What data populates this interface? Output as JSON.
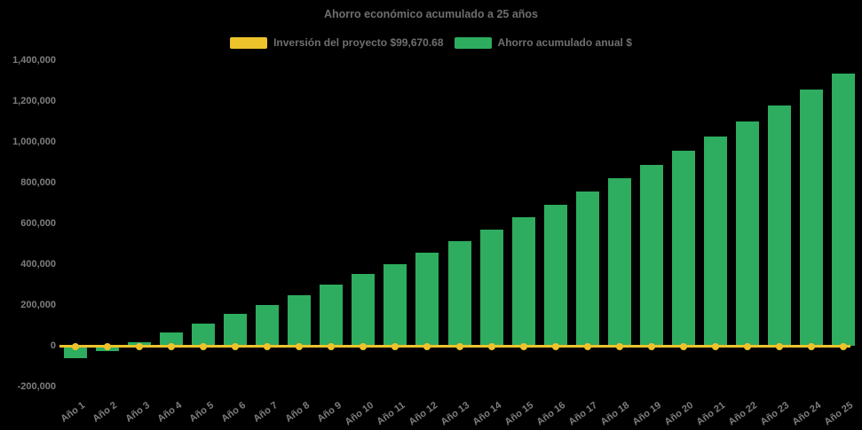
{
  "title": "Ahorro económico acumulado a 25 años",
  "legend": {
    "items": [
      {
        "label": "Inversión del proyecto $99,670.68",
        "color": "#edc32c",
        "series": "investment-line"
      },
      {
        "label": "Ahorro acumulado anual $",
        "color": "#2eac5f",
        "series": "savings-bars"
      }
    ]
  },
  "colors": {
    "background": "#000000",
    "title_text": "#6f6f6f",
    "axis_text": "#7e7e7e",
    "investment_yellow": "#edc32c",
    "savings_green": "#2eac5f"
  },
  "y_axis": {
    "max": 1400000,
    "min": -200000,
    "step": 200000,
    "tick_labels": [
      "1,400,000",
      "1,200,000",
      "1,000,000",
      "800,000",
      "600,000",
      "400,000",
      "200,000",
      "0",
      "-200,000"
    ]
  },
  "chart_data": {
    "type": "bar",
    "title": "Ahorro económico acumulado a 25 años",
    "categories": [
      "Año 1",
      "Año 2",
      "Año 3",
      "Año 4",
      "Año 5",
      "Año 6",
      "Año 7",
      "Año 8",
      "Año 9",
      "Año 10",
      "Año 11",
      "Año 12",
      "Año 13",
      "Año 14",
      "Año 15",
      "Año 16",
      "Año 17",
      "Año 18",
      "Año 19",
      "Año 20",
      "Año 21",
      "Año 22",
      "Año 23",
      "Año 24",
      "Año 25"
    ],
    "series": [
      {
        "name": "Inversión del proyecto $99,670.68",
        "type": "line",
        "color": "#edc32c",
        "investment_amount": 99670.68,
        "value_constant": 0
      },
      {
        "name": "Ahorro acumulado anual $",
        "type": "bar",
        "color": "#2eac5f",
        "values": [
          -60000,
          -28000,
          18000,
          64000,
          109000,
          155000,
          201000,
          250000,
          298000,
          351000,
          402000,
          456000,
          514000,
          571000,
          631000,
          692000,
          757000,
          820000,
          888000,
          957000,
          1027000,
          1100000,
          1177000,
          1256000,
          1335000
        ]
      }
    ],
    "ylim": [
      -200000,
      1400000
    ],
    "ytick_step": 200000,
    "grid": false,
    "legend_position": "top",
    "background": "#000000"
  }
}
